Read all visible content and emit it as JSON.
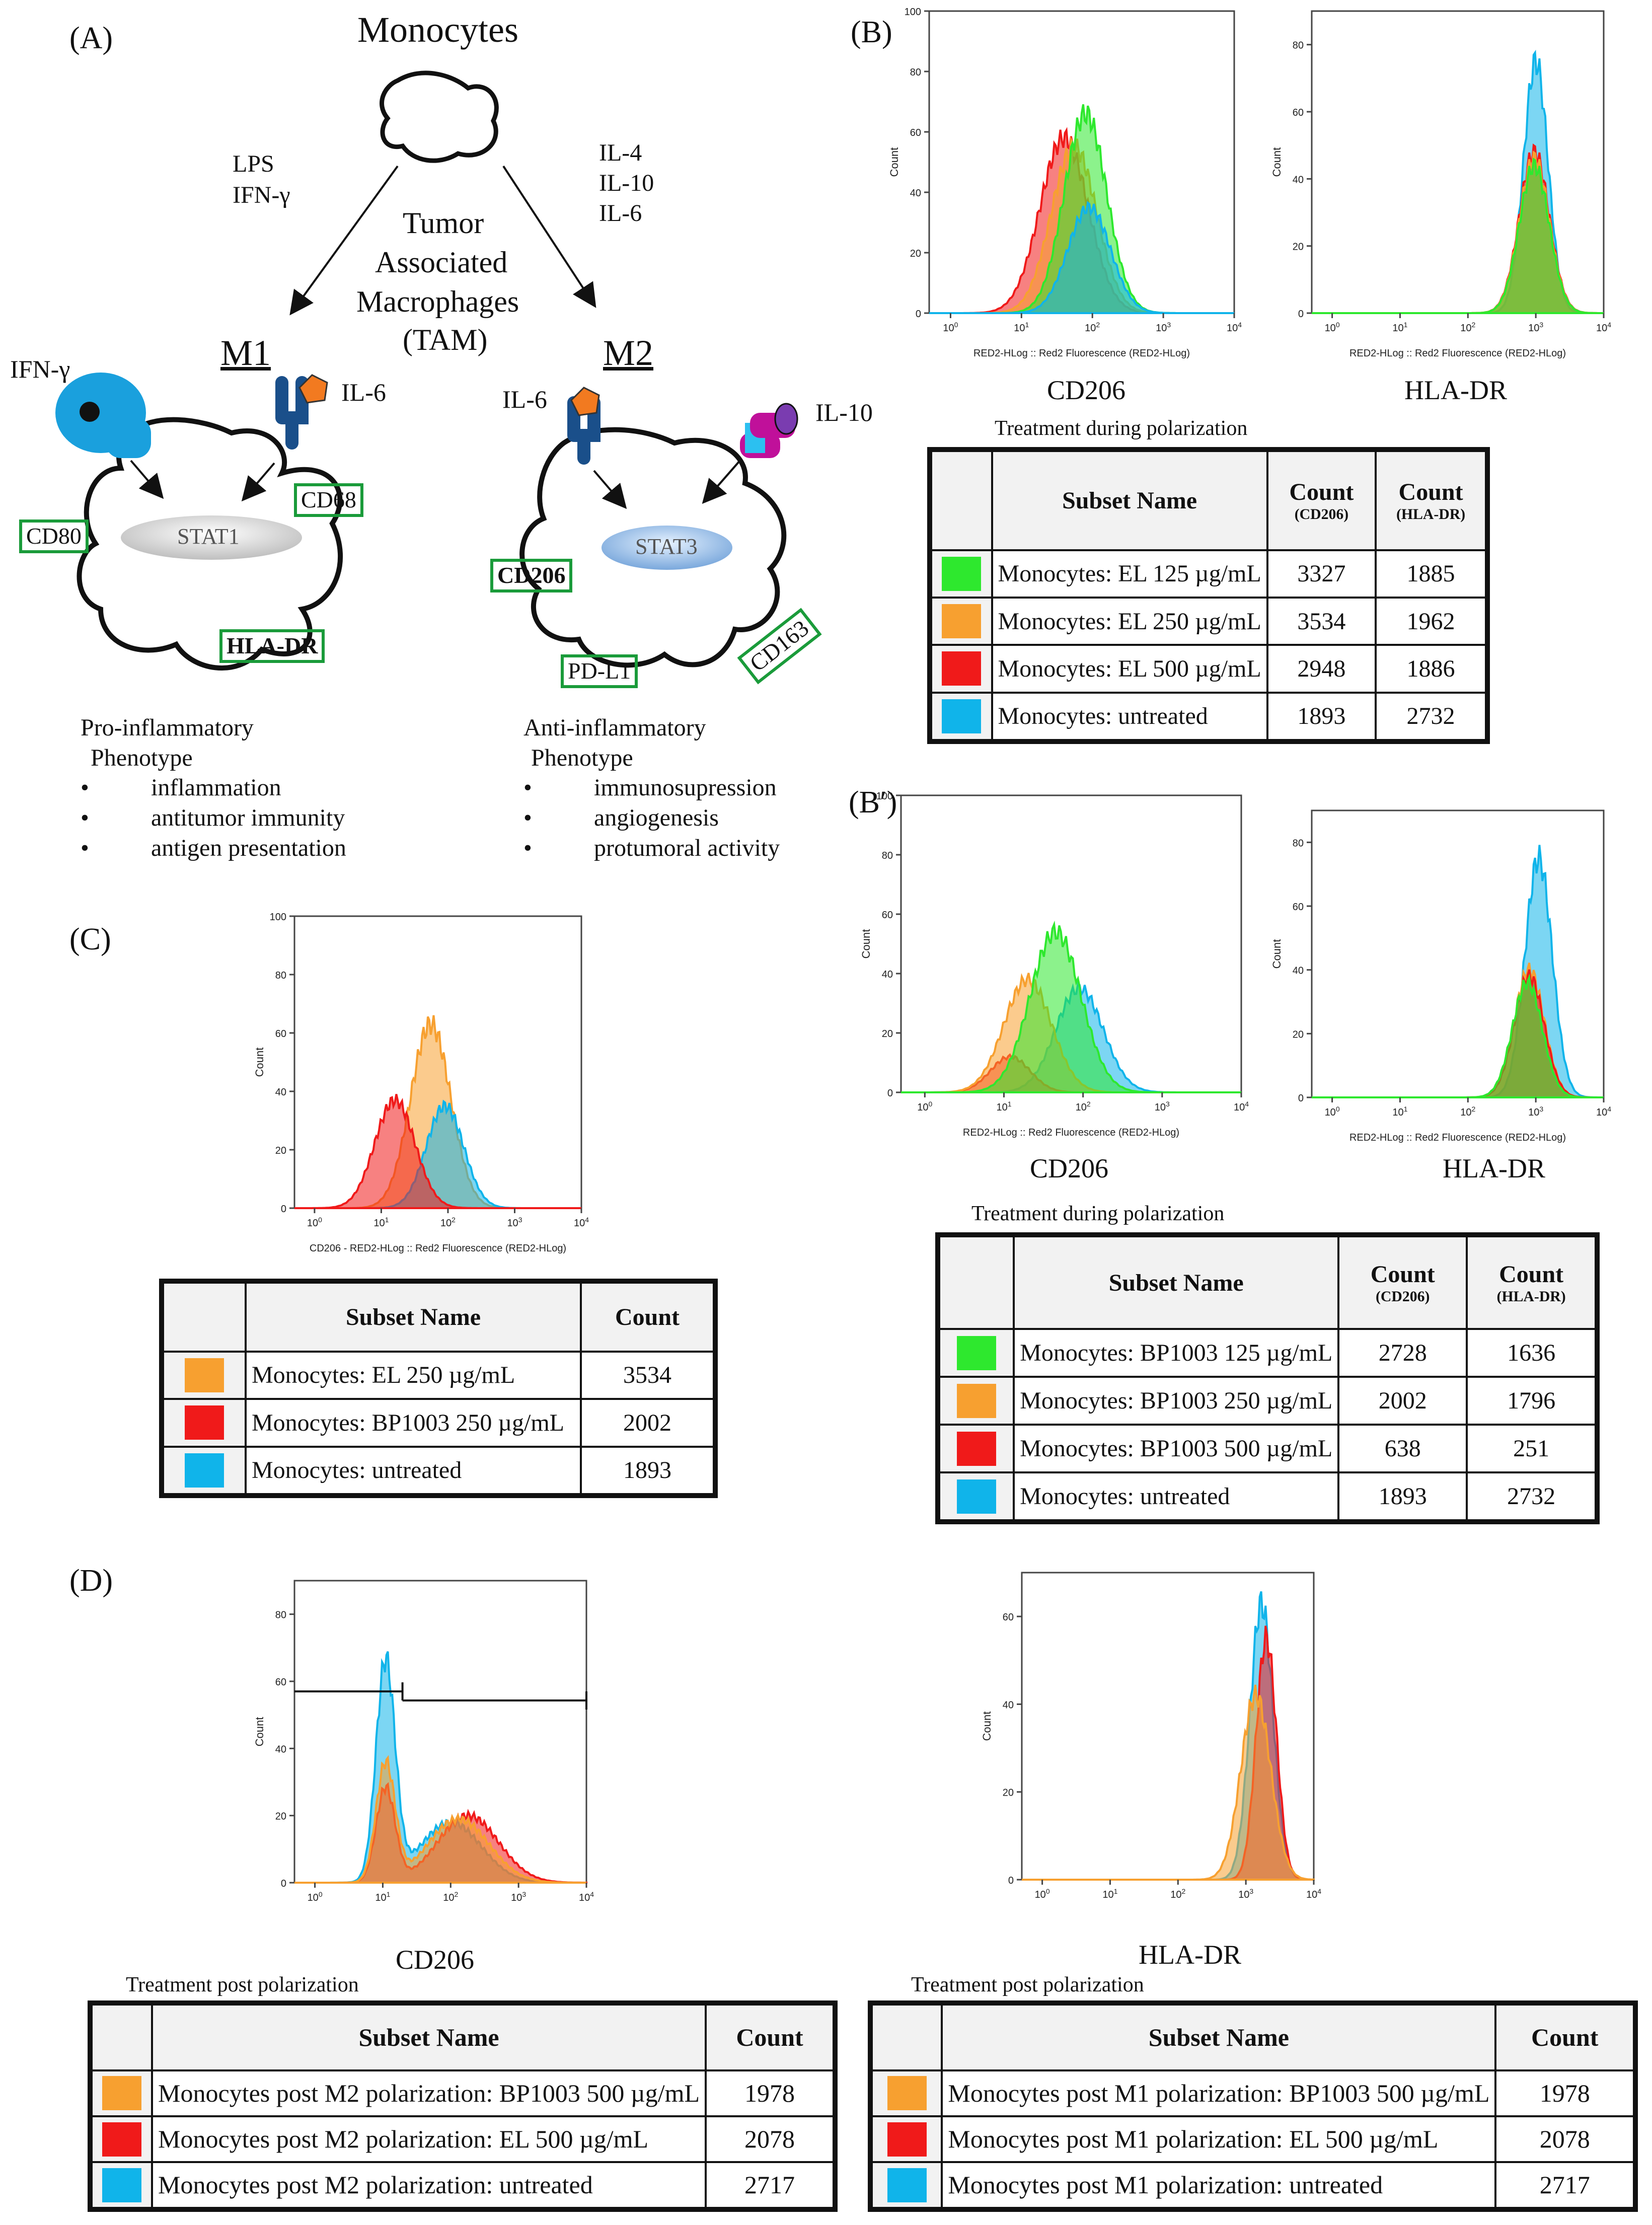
{
  "panels": {
    "a": "(A)",
    "b": "(B)",
    "bp": "(B′)",
    "c": "(C)",
    "d": "(D)"
  },
  "schematic": {
    "monocytes": "Monocytes",
    "m1_stimuli": [
      "LPS",
      "IFN-γ"
    ],
    "m2_stimuli": [
      "IL-4",
      "IL-10",
      "IL-6"
    ],
    "tam": [
      "Tumor",
      "Associated",
      "Macrophages",
      "(TAM)"
    ],
    "m1": "M1",
    "m2": "M2",
    "ifng": "IFN-γ",
    "il6_m1": "IL-6",
    "il6_m2": "IL-6",
    "il10": "IL-10",
    "stat1": "STAT1",
    "stat3": "STAT3",
    "cd80": "CD80",
    "cd68": "CD68",
    "hladr": "HLA-DR",
    "cd206": "CD206",
    "pdl1": "PD-L1",
    "cd163": "CD163",
    "pro_title": [
      "Pro-inflammatory",
      "Phenotype"
    ],
    "pro_items": [
      "inflammation",
      "antitumor immunity",
      "antigen presentation"
    ],
    "anti_title": [
      "Anti-inflammatory",
      "Phenotype"
    ],
    "anti_items": [
      "immunosupression",
      "angiogenesis",
      "protumoral activity"
    ]
  },
  "colors": {
    "green": "#2ee82e",
    "orange": "#f7a030",
    "red": "#f01a1a",
    "blue": "#10b4ea",
    "frame": "#1a9b3a"
  },
  "common": {
    "ylabel": "Count",
    "xlabel": "RED2-HLog :: Red2 Fluorescence (RED2-HLog)",
    "xlabel_c": "CD206 - RED2-HLog :: Red2 Fluorescence (RED2-HLog)",
    "cd206": "CD206",
    "hladr": "HLA-DR"
  },
  "chart_data": [
    {
      "id": "B-CD206",
      "type": "area",
      "title": "CD206",
      "xlabel": "RED2-HLog :: Red2 Fluorescence (RED2-HLog)",
      "ylabel": "Count",
      "xscale": "log",
      "xlim": [
        0.5,
        10000
      ],
      "ylim": [
        0,
        100
      ],
      "yticks": [
        0,
        20,
        40,
        60,
        80,
        100
      ],
      "xticks": [
        "10^0",
        "10^1",
        "10^2",
        "10^3",
        "10^4"
      ],
      "series": [
        {
          "name": "Monocytes: EL 500 µg/mL",
          "color": "red",
          "peak_x": 40,
          "peak_y": 58,
          "width": 0.34
        },
        {
          "name": "Monocytes: EL 250 µg/mL",
          "color": "orange",
          "peak_x": 55,
          "peak_y": 55,
          "width": 0.32
        },
        {
          "name": "Monocytes: EL 125 µg/mL",
          "color": "green",
          "peak_x": 80,
          "peak_y": 66,
          "width": 0.3
        },
        {
          "name": "Monocytes: untreated",
          "color": "blue",
          "peak_x": 90,
          "peak_y": 35,
          "width": 0.3
        }
      ]
    },
    {
      "id": "B-HLADR",
      "type": "area",
      "title": "HLA-DR",
      "xlabel": "RED2-HLog :: Red2 Fluorescence (RED2-HLog)",
      "ylabel": "Count",
      "xscale": "log",
      "xlim": [
        0.5,
        10000
      ],
      "ylim": [
        0,
        90
      ],
      "yticks": [
        0,
        20,
        40,
        60,
        80
      ],
      "xticks": [
        "10^0",
        "10^1",
        "10^2",
        "10^3",
        "10^4"
      ],
      "series": [
        {
          "name": "Monocytes: untreated",
          "color": "blue",
          "peak_x": 1000,
          "peak_y": 75,
          "width": 0.18
        },
        {
          "name": "Monocytes: EL 500 µg/mL",
          "color": "red",
          "peak_x": 950,
          "peak_y": 48,
          "width": 0.22
        },
        {
          "name": "Monocytes: EL 250 µg/mL",
          "color": "orange",
          "peak_x": 950,
          "peak_y": 46,
          "width": 0.22
        },
        {
          "name": "Monocytes: EL 125 µg/mL",
          "color": "green",
          "peak_x": 950,
          "peak_y": 44,
          "width": 0.22
        }
      ]
    },
    {
      "id": "Bp-CD206",
      "type": "area",
      "title": "CD206",
      "xlabel": "RED2-HLog :: Red2 Fluorescence (RED2-HLog)",
      "ylabel": "Count",
      "xscale": "log",
      "xlim": [
        0.5,
        10000
      ],
      "ylim": [
        0,
        100
      ],
      "yticks": [
        0,
        20,
        40,
        60,
        80,
        100
      ],
      "xticks": [
        "10^0",
        "10^1",
        "10^2",
        "10^3",
        "10^4"
      ],
      "series": [
        {
          "name": "Monocytes: untreated",
          "color": "blue",
          "peak_x": 90,
          "peak_y": 35,
          "width": 0.3
        },
        {
          "name": "Monocytes: BP1003 500 µg/mL",
          "color": "red",
          "peak_x": 12,
          "peak_y": 12,
          "width": 0.25
        },
        {
          "name": "Monocytes: BP1003 250 µg/mL",
          "color": "orange",
          "peak_x": 20,
          "peak_y": 38,
          "width": 0.3
        },
        {
          "name": "Monocytes: BP1003 125 µg/mL",
          "color": "green",
          "peak_x": 45,
          "peak_y": 54,
          "width": 0.32
        }
      ]
    },
    {
      "id": "Bp-HLADR",
      "type": "area",
      "title": "HLA-DR",
      "xlabel": "RED2-HLog :: Red2 Fluorescence (RED2-HLog)",
      "ylabel": "Count",
      "xscale": "log",
      "xlim": [
        0.5,
        10000
      ],
      "ylim": [
        0,
        90
      ],
      "yticks": [
        0,
        20,
        40,
        60,
        80
      ],
      "xticks": [
        "10^0",
        "10^1",
        "10^2",
        "10^3",
        "10^4"
      ],
      "series": [
        {
          "name": "Monocytes: untreated",
          "color": "blue",
          "peak_x": 1100,
          "peak_y": 75,
          "width": 0.2
        },
        {
          "name": "Monocytes: BP1003 250 µg/mL",
          "color": "orange",
          "peak_x": 800,
          "peak_y": 40,
          "width": 0.22
        },
        {
          "name": "Monocytes: BP1003 500 µg/mL",
          "color": "red",
          "peak_x": 800,
          "peak_y": 38,
          "width": 0.22
        },
        {
          "name": "Monocytes: BP1003 125 µg/mL",
          "color": "green",
          "peak_x": 750,
          "peak_y": 36,
          "width": 0.22
        }
      ]
    },
    {
      "id": "C-CD206",
      "type": "area",
      "title": "",
      "xlabel": "CD206 - RED2-HLog :: Red2 Fluorescence (RED2-HLog)",
      "ylabel": "Count",
      "xscale": "log",
      "xlim": [
        0.5,
        10000
      ],
      "ylim": [
        0,
        100
      ],
      "yticks": [
        0,
        20,
        40,
        60,
        80,
        100
      ],
      "xticks": [
        "10^0",
        "10^1",
        "10^2",
        "10^3",
        "10^4"
      ],
      "series": [
        {
          "name": "Monocytes: EL 250 µg/mL",
          "color": "orange",
          "peak_x": 55,
          "peak_y": 63,
          "width": 0.3
        },
        {
          "name": "Monocytes: untreated",
          "color": "blue",
          "peak_x": 90,
          "peak_y": 35,
          "width": 0.28
        },
        {
          "name": "Monocytes: BP1003 250 µg/mL",
          "color": "red",
          "peak_x": 16,
          "peak_y": 37,
          "width": 0.3
        }
      ]
    },
    {
      "id": "D-CD206",
      "type": "area",
      "title": "CD206",
      "xlabel": "",
      "ylabel": "Count",
      "xscale": "log",
      "xlim": [
        0.5,
        10000
      ],
      "ylim": [
        0,
        90
      ],
      "yticks": [
        0,
        20,
        40,
        60,
        80
      ],
      "xticks": [
        "10^0",
        "10^1",
        "10^2",
        "10^3",
        "10^4"
      ],
      "series": [
        {
          "name": "Monocytes post M2 polarization: untreated",
          "color": "blue",
          "peak_x": 11,
          "peak_y": 65,
          "width": 0.14,
          "tail_x": 100,
          "tail_y": 18
        },
        {
          "name": "Monocytes post M2 polarization: EL 500 µg/mL",
          "color": "red",
          "peak_x": 11,
          "peak_y": 28,
          "width": 0.14,
          "tail_x": 180,
          "tail_y": 20
        },
        {
          "name": "Monocytes post M2 polarization: BP1003 500 µg/mL",
          "color": "orange",
          "peak_x": 11,
          "peak_y": 35,
          "width": 0.14,
          "tail_x": 130,
          "tail_y": 19
        }
      ]
    },
    {
      "id": "D-HLADR",
      "type": "area",
      "title": "HLA-DR",
      "xlabel": "",
      "ylabel": "Count",
      "xscale": "log",
      "xlim": [
        0.5,
        10000
      ],
      "ylim": [
        0,
        70
      ],
      "yticks": [
        0,
        20,
        40,
        60
      ],
      "xticks": [
        "10^0",
        "10^1",
        "10^2",
        "10^3",
        "10^4"
      ],
      "series": [
        {
          "name": "Monocytes post M1 polarization: untreated",
          "color": "blue",
          "peak_x": 1700,
          "peak_y": 63,
          "width": 0.17
        },
        {
          "name": "Monocytes post M1 polarization: EL 500 µg/mL",
          "color": "red",
          "peak_x": 2000,
          "peak_y": 55,
          "width": 0.15
        },
        {
          "name": "Monocytes post M1 polarization: BP1003 500 µg/mL",
          "color": "orange",
          "peak_x": 1400,
          "peak_y": 42,
          "width": 0.22
        }
      ]
    }
  ],
  "tables": {
    "b": {
      "heading": "Treatment during polarization",
      "col_name": "Subset Name",
      "col_count": "Count",
      "col_sub1": "(CD206)",
      "col_sub2": "(HLA-DR)",
      "rows": [
        {
          "color": "green",
          "name": "Monocytes: EL 125 µg/mL",
          "c1": "3327",
          "c2": "1885"
        },
        {
          "color": "orange",
          "name": "Monocytes: EL 250 µg/mL",
          "c1": "3534",
          "c2": "1962"
        },
        {
          "color": "red",
          "name": "Monocytes: EL 500 µg/mL",
          "c1": "2948",
          "c2": "1886"
        },
        {
          "color": "blue",
          "name": "Monocytes: untreated",
          "c1": "1893",
          "c2": "2732"
        }
      ]
    },
    "bp": {
      "heading": "Treatment during polarization",
      "col_name": "Subset Name",
      "col_count": "Count",
      "col_sub1": "(CD206)",
      "col_sub2": "(HLA-DR)",
      "rows": [
        {
          "color": "green",
          "name": "Monocytes: BP1003 125 µg/mL",
          "c1": "2728",
          "c2": "1636"
        },
        {
          "color": "orange",
          "name": "Monocytes: BP1003 250 µg/mL",
          "c1": "2002",
          "c2": "1796"
        },
        {
          "color": "red",
          "name": "Monocytes: BP1003 500 µg/mL",
          "c1": "638",
          "c2": "251"
        },
        {
          "color": "blue",
          "name": "Monocytes: untreated",
          "c1": "1893",
          "c2": "2732"
        }
      ]
    },
    "c": {
      "col_name": "Subset Name",
      "col_count": "Count",
      "rows": [
        {
          "color": "orange",
          "name": "Monocytes: EL 250 µg/mL",
          "c1": "3534"
        },
        {
          "color": "red",
          "name": "Monocytes: BP1003 250 µg/mL",
          "c1": "2002"
        },
        {
          "color": "blue",
          "name": "Monocytes: untreated",
          "c1": "1893"
        }
      ]
    },
    "d1": {
      "heading": "Treatment post polarization",
      "col_name": "Subset Name",
      "col_count": "Count",
      "rows": [
        {
          "color": "orange",
          "name": "Monocytes post M2 polarization: BP1003 500 µg/mL",
          "c1": "1978"
        },
        {
          "color": "red",
          "name": "Monocytes post M2 polarization: EL 500 µg/mL",
          "c1": "2078"
        },
        {
          "color": "blue",
          "name": "Monocytes post M2 polarization: untreated",
          "c1": "2717"
        }
      ]
    },
    "d2": {
      "heading": "Treatment post polarization",
      "col_name": "Subset Name",
      "col_count": "Count",
      "rows": [
        {
          "color": "orange",
          "name": "Monocytes post M1 polarization: BP1003 500 µg/mL",
          "c1": "1978"
        },
        {
          "color": "red",
          "name": "Monocytes post M1 polarization: EL 500 µg/mL",
          "c1": "2078"
        },
        {
          "color": "blue",
          "name": "Monocytes post M1 polarization: untreated",
          "c1": "2717"
        }
      ]
    }
  }
}
